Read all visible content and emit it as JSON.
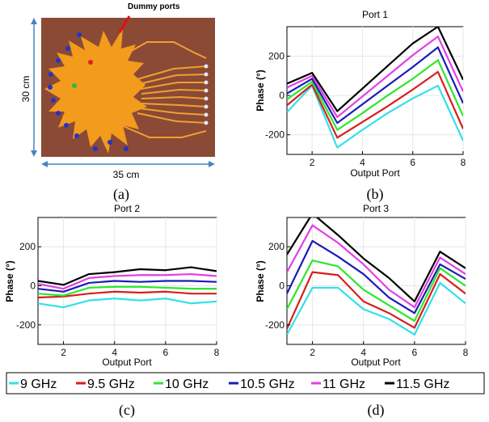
{
  "captions": {
    "a": "(a)",
    "b": "(b)",
    "c": "(c)",
    "d": "(d)"
  },
  "photo": {
    "annotation": "Dummy ports",
    "height_label": "30 cm",
    "width_label": "35 cm",
    "colors": {
      "board": "#8b4a36",
      "antenna": "#f29b1c",
      "dimension": "#4a84c0"
    }
  },
  "series_colors": [
    "#33e0e8",
    "#d81e1e",
    "#2ee62e",
    "#1b1bb8",
    "#e33ee6",
    "#000000"
  ],
  "legend": [
    "9 GHz",
    "9.5 GHz",
    "10 GHz",
    "10.5 GHz",
    "11 GHz",
    "11.5 GHz"
  ],
  "chart_data": [
    {
      "id": "b",
      "type": "line",
      "title": "Port 1",
      "xlabel": "Output Port",
      "ylabel": "Phase (°)",
      "xlim": [
        1,
        8
      ],
      "ylim": [
        -300,
        350
      ],
      "xticks": [
        2,
        4,
        6,
        8
      ],
      "yticks": [
        -200,
        0,
        200
      ],
      "x": [
        1,
        2,
        3,
        4,
        5,
        6,
        7,
        8
      ],
      "series": [
        {
          "name": "9 GHz",
          "values": [
            -85,
            50,
            -265,
            -175,
            -90,
            -15,
            50,
            -230
          ]
        },
        {
          "name": "9.5 GHz",
          "values": [
            -50,
            55,
            -215,
            -135,
            -55,
            30,
            120,
            -170
          ]
        },
        {
          "name": "10 GHz",
          "values": [
            -20,
            70,
            -175,
            -90,
            0,
            85,
            180,
            -105
          ]
        },
        {
          "name": "10.5 GHz",
          "values": [
            10,
            85,
            -140,
            -45,
            50,
            145,
            245,
            -40
          ]
        },
        {
          "name": "11 GHz",
          "values": [
            40,
            100,
            -110,
            -5,
            100,
            205,
            300,
            20
          ]
        },
        {
          "name": "11.5 GHz",
          "values": [
            60,
            115,
            -80,
            35,
            150,
            265,
            350,
            80
          ]
        }
      ]
    },
    {
      "id": "c",
      "type": "line",
      "title": "Port 2",
      "xlabel": "Output Port",
      "ylabel": "Phase (°)",
      "xlim": [
        1,
        8
      ],
      "ylim": [
        -300,
        350
      ],
      "xticks": [
        2,
        4,
        6,
        8
      ],
      "yticks": [
        -200,
        0,
        200
      ],
      "x": [
        1,
        2,
        3,
        4,
        5,
        6,
        7,
        8
      ],
      "series": [
        {
          "name": "9 GHz",
          "values": [
            -90,
            -110,
            -75,
            -65,
            -75,
            -65,
            -90,
            -80
          ]
        },
        {
          "name": "9.5 GHz",
          "values": [
            -60,
            -55,
            -40,
            -30,
            -35,
            -30,
            -40,
            -40
          ]
        },
        {
          "name": "10 GHz",
          "values": [
            -40,
            -50,
            -10,
            -5,
            -5,
            -10,
            -15,
            -15
          ]
        },
        {
          "name": "10.5 GHz",
          "values": [
            -15,
            -30,
            15,
            25,
            20,
            25,
            25,
            20
          ]
        },
        {
          "name": "11 GHz",
          "values": [
            10,
            -15,
            40,
            50,
            55,
            55,
            60,
            50
          ]
        },
        {
          "name": "11.5 GHz",
          "values": [
            25,
            5,
            60,
            70,
            85,
            80,
            95,
            75
          ]
        }
      ]
    },
    {
      "id": "d",
      "type": "line",
      "title": "Port 3",
      "xlabel": "Output Port",
      "ylabel": "Phase (°)",
      "xlim": [
        1,
        8
      ],
      "ylim": [
        -300,
        350
      ],
      "xticks": [
        2,
        4,
        6,
        8
      ],
      "yticks": [
        -200,
        0,
        200
      ],
      "x": [
        1,
        2,
        3,
        4,
        5,
        6,
        7,
        8
      ],
      "series": [
        {
          "name": "9 GHz",
          "values": [
            -250,
            -10,
            -10,
            -120,
            -170,
            -250,
            15,
            -90
          ]
        },
        {
          "name": "9.5 GHz",
          "values": [
            -220,
            70,
            55,
            -80,
            -140,
            -215,
            60,
            -40
          ]
        },
        {
          "name": "10 GHz",
          "values": [
            -120,
            130,
            100,
            -20,
            -100,
            -180,
            90,
            0
          ]
        },
        {
          "name": "10.5 GHz",
          "values": [
            -40,
            230,
            150,
            60,
            -60,
            -140,
            110,
            35
          ]
        },
        {
          "name": "11 GHz",
          "values": [
            70,
            310,
            220,
            110,
            -20,
            -110,
            145,
            60
          ]
        },
        {
          "name": "11.5 GHz",
          "values": [
            160,
            370,
            260,
            140,
            40,
            -80,
            175,
            90
          ]
        }
      ]
    }
  ]
}
